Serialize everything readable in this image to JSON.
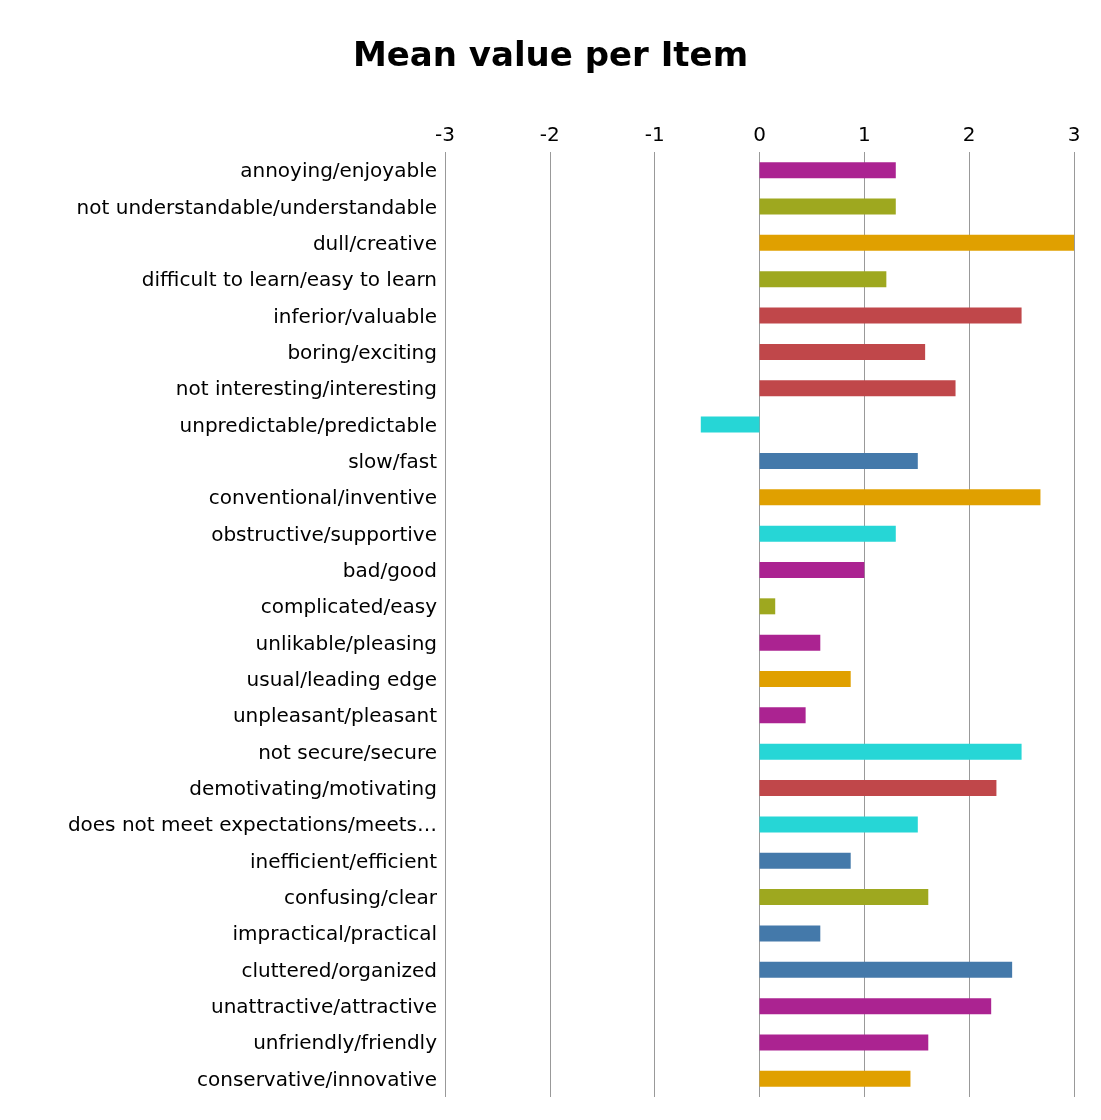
{
  "chart_data": {
    "type": "bar",
    "orientation": "horizontal",
    "title": "Mean value per Item",
    "categories": [
      "annoying/enjoyable",
      "not understandable/understandable",
      "dull/creative",
      "difficult to learn/easy to learn",
      "inferior/valuable",
      "boring/exciting",
      "not interesting/interesting",
      "unpredictable/predictable",
      "slow/fast",
      "conventional/inventive",
      "obstructive/supportive",
      "bad/good",
      "complicated/easy",
      "unlikable/pleasing",
      "usual/leading edge",
      "unpleasant/pleasant",
      "not secure/secure",
      "demotivating/motivating",
      "does not meet expectations/meets…",
      "inefficient/efficient",
      "confusing/clear",
      "impractical/practical",
      "cluttered/organized",
      "unattractive/attractive",
      "unfriendly/friendly",
      "conservative/innovative"
    ],
    "values": [
      1.3,
      1.3,
      3.0,
      1.21,
      2.5,
      1.58,
      1.87,
      -0.56,
      1.51,
      2.68,
      1.3,
      1.0,
      0.15,
      0.58,
      0.87,
      0.44,
      2.5,
      2.26,
      1.51,
      0.87,
      1.61,
      0.58,
      2.41,
      2.21,
      1.61,
      1.44
    ],
    "colors": [
      "#ab2391",
      "#9ea81f",
      "#e0a000",
      "#9ea81f",
      "#c0474a",
      "#c0474a",
      "#c0474a",
      "#26d6d6",
      "#4479aa",
      "#e0a000",
      "#26d6d6",
      "#ab2391",
      "#9ea81f",
      "#ab2391",
      "#e0a000",
      "#ab2391",
      "#26d6d6",
      "#c0474a",
      "#26d6d6",
      "#4479aa",
      "#9ea81f",
      "#4479aa",
      "#4479aa",
      "#ab2391",
      "#ab2391",
      "#e0a000"
    ],
    "xlim": [
      -3,
      3
    ],
    "xticks": [
      -3,
      -2,
      -1,
      0,
      1,
      2,
      3
    ],
    "grid": "x"
  }
}
